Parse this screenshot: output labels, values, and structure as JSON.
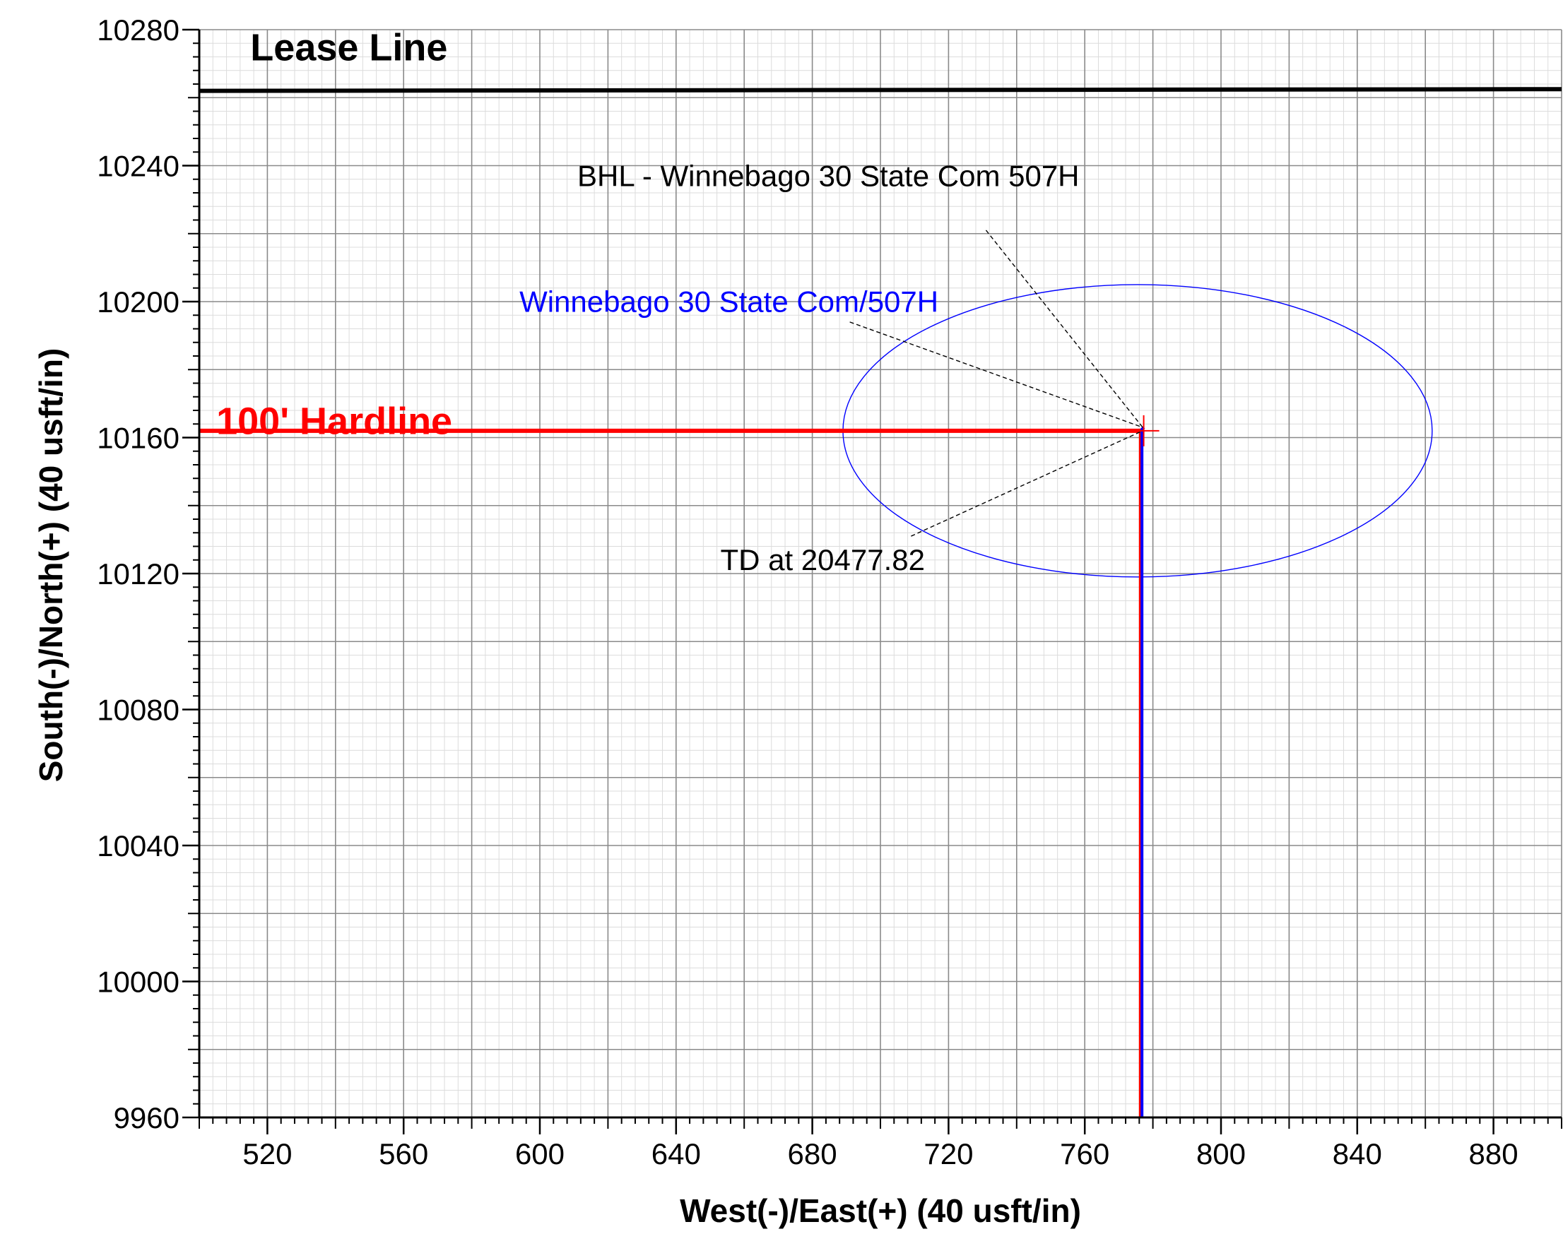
{
  "chart_data": {
    "type": "line",
    "xlabel": "West(-)/East(+) (40 usft/in)",
    "ylabel": "South(-)/North(+) (40 usft/in)",
    "xlim": [
      500,
      900
    ],
    "ylim": [
      9960,
      10280
    ],
    "xticks": [
      520,
      560,
      600,
      640,
      680,
      720,
      760,
      800,
      840,
      880
    ],
    "yticks": [
      9960,
      10000,
      10040,
      10080,
      10120,
      10160,
      10200,
      10240,
      10280
    ],
    "minor_step": 4,
    "grid": true,
    "colors": {
      "lease_line": "#000000",
      "hardline": "#ff0000",
      "wellpath": "#0000ff",
      "plan": "#ff0000",
      "ellipse": "#0000ff",
      "leader": "#000000",
      "grid_major": "#8a8a8a",
      "grid_minor": "#dcdcdc"
    },
    "lines": [
      {
        "label": "Lease Line",
        "points": [
          [
            500,
            10262
          ],
          [
            900,
            10262.5
          ]
        ],
        "label_anchor": [
          515,
          10271
        ]
      },
      {
        "label": "100' Hardline",
        "points": [
          [
            500,
            10162
          ],
          [
            777.5,
            10162
          ]
        ],
        "label_anchor": [
          505,
          10161
        ]
      }
    ],
    "series": [
      {
        "name": "Winnebago 30 State Com/507H",
        "points": [
          [
            776.8,
            9960
          ],
          [
            776.8,
            10162.5
          ],
          [
            777.4,
            10163
          ]
        ]
      },
      {
        "points": [
          [
            776.2,
            9960
          ],
          [
            776.2,
            10162
          ]
        ]
      }
    ],
    "ellipse": {
      "cx": 775.5,
      "cy": 10162,
      "rx": 86.5,
      "ry": 43
    },
    "target_marker": [
      777.3,
      10162
    ],
    "annotations": [
      {
        "text": "BHL - Winnebago 30 State Com 507H",
        "color": "#000000",
        "text_anchor": [
          611,
          10234
        ],
        "leader": [
          [
            731,
            10221
          ],
          [
            777,
            10163
          ]
        ]
      },
      {
        "text": "Winnebago 30 State Com/507H",
        "color": "#0000ff",
        "text_anchor": [
          594,
          10197
        ],
        "leader": [
          [
            691,
            10194
          ],
          [
            777,
            10163
          ]
        ]
      },
      {
        "text": "TD at 20477.82",
        "color": "#000000",
        "text_anchor": [
          653,
          10121
        ],
        "leader": [
          [
            709,
            10131
          ],
          [
            777,
            10162
          ]
        ]
      }
    ]
  }
}
